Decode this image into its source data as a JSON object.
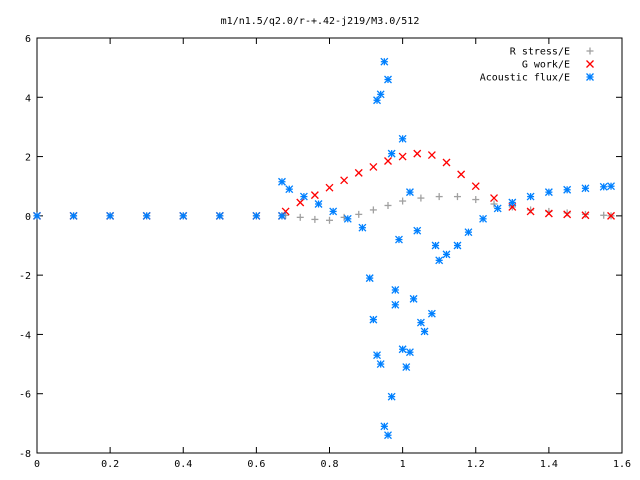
{
  "chart_data": {
    "type": "scatter",
    "title": "m1/n1.5/q2.0/r-+.42-j219/M3.0/512",
    "xlabel": "",
    "ylabel": "",
    "xlim": [
      0,
      1.6
    ],
    "ylim": [
      -8,
      6
    ],
    "xticks": [
      "0",
      "0.2",
      "0.4",
      "0.6",
      "0.8",
      "1",
      "1.2",
      "1.4",
      "1.6"
    ],
    "yticks": [
      "6",
      "4",
      "2",
      "0",
      "-2",
      "-4",
      "-6",
      "-8"
    ],
    "grid": false,
    "legend_position": "top-right",
    "series": [
      {
        "name": "R stress/E",
        "marker": "plus",
        "color": "#a0a0a0",
        "description_points": [
          [
            0.0,
            0
          ],
          [
            0.1,
            0
          ],
          [
            0.2,
            0
          ],
          [
            0.3,
            0
          ],
          [
            0.4,
            0
          ],
          [
            0.5,
            0
          ],
          [
            0.6,
            0
          ],
          [
            0.67,
            0
          ],
          [
            0.68,
            0.02
          ],
          [
            0.72,
            -0.05
          ],
          [
            0.76,
            -0.12
          ],
          [
            0.8,
            -0.15
          ],
          [
            0.84,
            -0.05
          ],
          [
            0.88,
            0.05
          ],
          [
            0.92,
            0.2
          ],
          [
            0.96,
            0.35
          ],
          [
            1.0,
            0.5
          ],
          [
            1.05,
            0.6
          ],
          [
            1.1,
            0.65
          ],
          [
            1.15,
            0.65
          ],
          [
            1.2,
            0.55
          ],
          [
            1.25,
            0.4
          ],
          [
            1.3,
            0.3
          ],
          [
            1.35,
            0.2
          ],
          [
            1.4,
            0.15
          ],
          [
            1.45,
            0.1
          ],
          [
            1.5,
            0.05
          ],
          [
            1.55,
            0.02
          ],
          [
            1.57,
            0.0
          ]
        ]
      },
      {
        "name": "G work/E",
        "marker": "cross",
        "color": "#ff0000",
        "description_points": [
          [
            0.0,
            0
          ],
          [
            0.1,
            0
          ],
          [
            0.2,
            0
          ],
          [
            0.3,
            0
          ],
          [
            0.4,
            0
          ],
          [
            0.5,
            0
          ],
          [
            0.6,
            0
          ],
          [
            0.67,
            0
          ],
          [
            0.68,
            0.15
          ],
          [
            0.72,
            0.45
          ],
          [
            0.76,
            0.7
          ],
          [
            0.8,
            0.95
          ],
          [
            0.84,
            1.2
          ],
          [
            0.88,
            1.45
          ],
          [
            0.92,
            1.65
          ],
          [
            0.96,
            1.85
          ],
          [
            1.0,
            2.0
          ],
          [
            1.04,
            2.1
          ],
          [
            1.08,
            2.05
          ],
          [
            1.12,
            1.8
          ],
          [
            1.16,
            1.4
          ],
          [
            1.2,
            1.0
          ],
          [
            1.25,
            0.6
          ],
          [
            1.3,
            0.3
          ],
          [
            1.35,
            0.15
          ],
          [
            1.4,
            0.08
          ],
          [
            1.45,
            0.05
          ],
          [
            1.5,
            0.02
          ],
          [
            1.57,
            0.0
          ]
        ]
      },
      {
        "name": "Acoustic flux/E",
        "marker": "star",
        "color": "#0080ff",
        "description_points": [
          [
            0.0,
            0
          ],
          [
            0.1,
            0
          ],
          [
            0.2,
            0
          ],
          [
            0.3,
            0
          ],
          [
            0.4,
            0
          ],
          [
            0.5,
            0
          ],
          [
            0.6,
            0
          ],
          [
            0.67,
            0
          ],
          [
            0.67,
            1.15
          ],
          [
            0.69,
            0.9
          ],
          [
            0.73,
            0.65
          ],
          [
            0.77,
            0.4
          ],
          [
            0.81,
            0.15
          ],
          [
            0.85,
            -0.1
          ],
          [
            0.89,
            -0.4
          ],
          [
            0.91,
            -2.1
          ],
          [
            0.92,
            -3.5
          ],
          [
            0.93,
            -4.7
          ],
          [
            0.93,
            3.9
          ],
          [
            0.94,
            4.1
          ],
          [
            0.94,
            -5.0
          ],
          [
            0.95,
            5.2
          ],
          [
            0.95,
            -7.1
          ],
          [
            0.96,
            4.6
          ],
          [
            0.96,
            -7.4
          ],
          [
            0.97,
            2.1
          ],
          [
            0.97,
            -6.1
          ],
          [
            0.98,
            -2.5
          ],
          [
            0.98,
            -3.0
          ],
          [
            0.99,
            -0.8
          ],
          [
            1.0,
            2.6
          ],
          [
            1.0,
            -4.5
          ],
          [
            1.01,
            -5.1
          ],
          [
            1.02,
            0.8
          ],
          [
            1.02,
            -4.6
          ],
          [
            1.03,
            -2.8
          ],
          [
            1.04,
            -0.5
          ],
          [
            1.05,
            -3.6
          ],
          [
            1.06,
            -3.9
          ],
          [
            1.08,
            -3.3
          ],
          [
            1.09,
            -1.0
          ],
          [
            1.1,
            -1.5
          ],
          [
            1.12,
            -1.3
          ],
          [
            1.15,
            -1.0
          ],
          [
            1.18,
            -0.55
          ],
          [
            1.22,
            -0.1
          ],
          [
            1.26,
            0.25
          ],
          [
            1.3,
            0.45
          ],
          [
            1.35,
            0.65
          ],
          [
            1.4,
            0.8
          ],
          [
            1.45,
            0.88
          ],
          [
            1.5,
            0.93
          ],
          [
            1.55,
            0.98
          ],
          [
            1.57,
            1.0
          ]
        ]
      }
    ]
  }
}
